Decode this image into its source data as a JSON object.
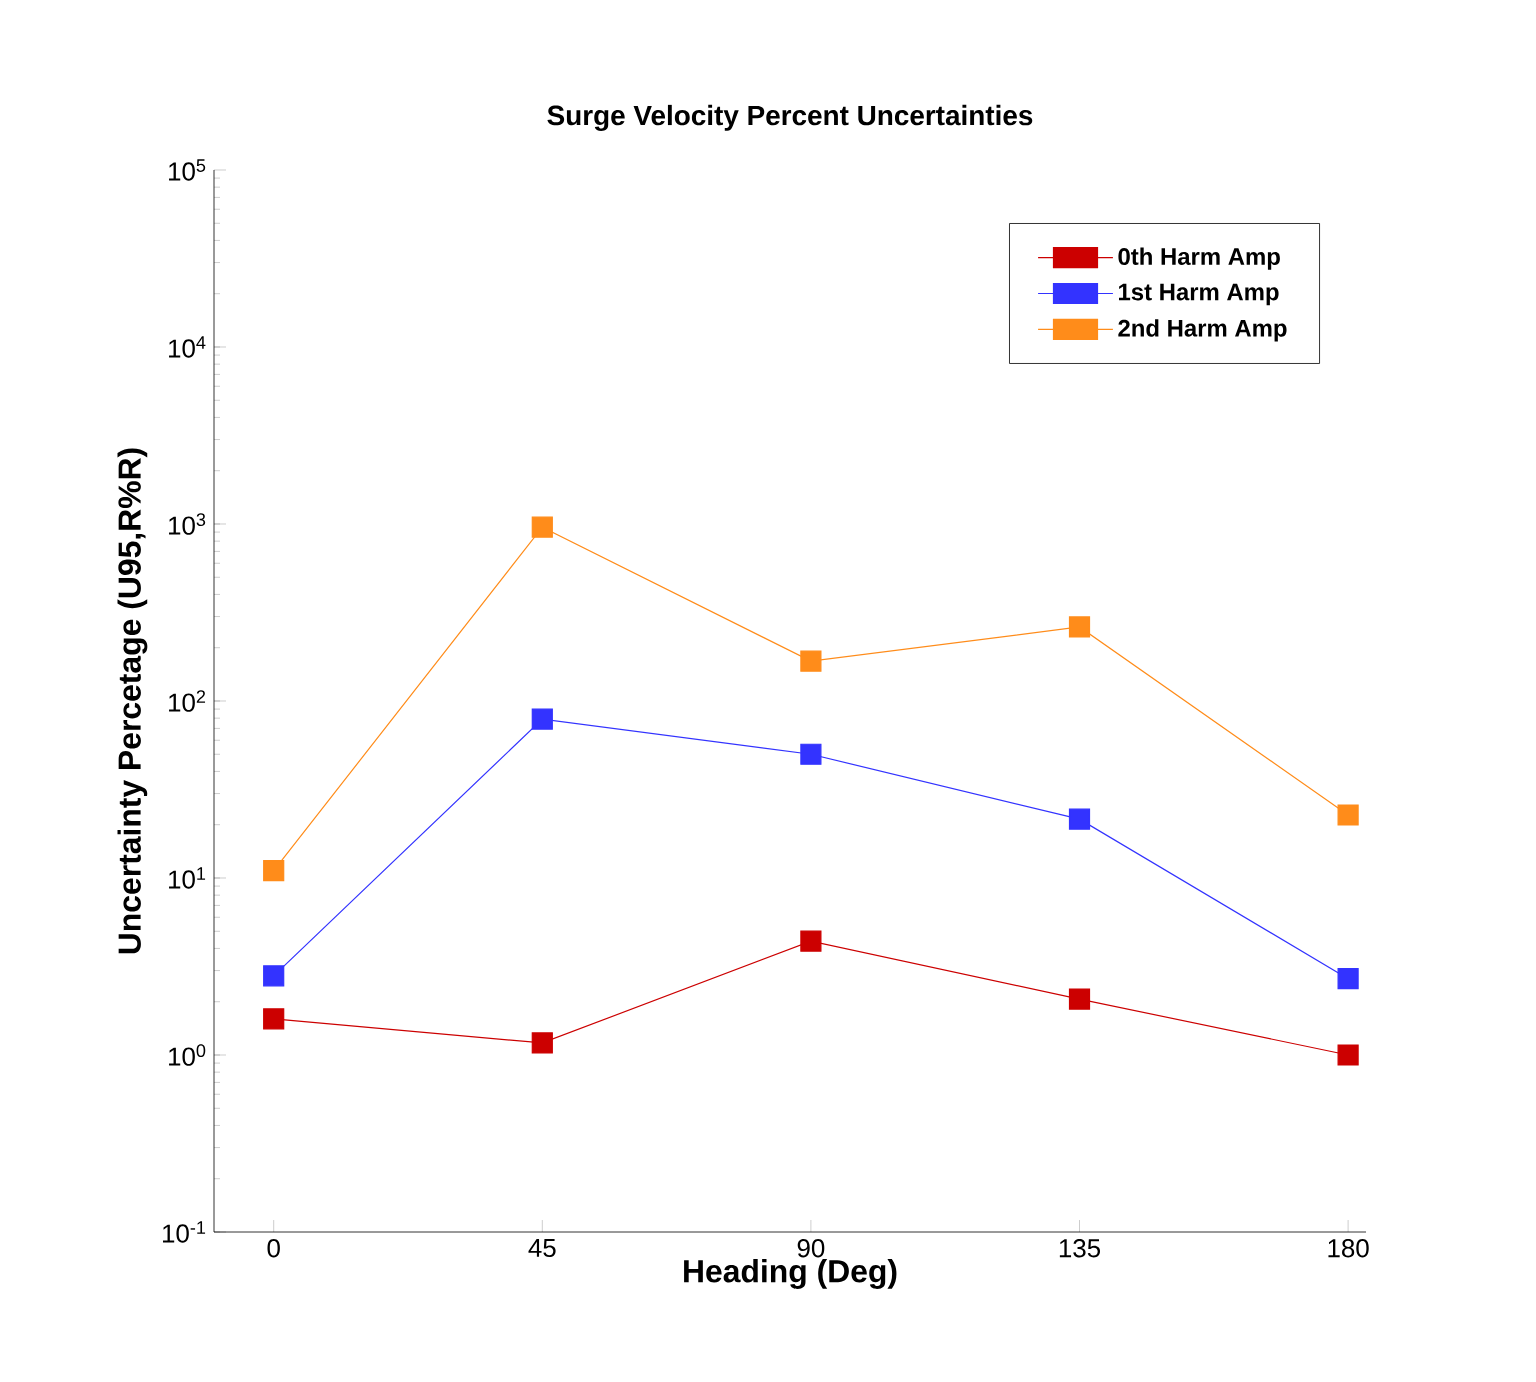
{
  "chart_data": {
    "type": "line",
    "title": "Surge Velocity Percent Uncertainties",
    "xlabel": "Heading (Deg)",
    "ylabel": "Uncertainty Percetage (U95,R%R)",
    "x": [
      0,
      45,
      90,
      135,
      180
    ],
    "series": [
      {
        "name": "0th Harm Amp",
        "color": "#cc0000",
        "values": [
          1.6,
          1.17,
          4.4,
          2.07,
          1.0
        ]
      },
      {
        "name": "1st Harm Amp",
        "color": "#3333ff",
        "values": [
          2.8,
          79,
          50,
          21.5,
          2.7
        ]
      },
      {
        "name": "2nd Harm Amp",
        "color": "#ff8c1a",
        "values": [
          11,
          960,
          168,
          262,
          22.7
        ]
      }
    ],
    "log": "y",
    "xlim": [
      -10,
      183
    ],
    "ylim": [
      0.1,
      100000
    ],
    "xticks": [
      0,
      45,
      90,
      135,
      180
    ],
    "yticks": [
      {
        "value": 0.1,
        "label": "10$^{-1}$"
      },
      {
        "value": 1,
        "label": "10$^{0}$"
      },
      {
        "value": 10,
        "label": "10$^{1}$"
      },
      {
        "value": 100,
        "label": "10$^{2}$"
      },
      {
        "value": 1000,
        "label": "10$^{3}$"
      },
      {
        "value": 10000,
        "label": "10$^{4}$"
      },
      {
        "value": 100000,
        "label": "10$^{5}$"
      }
    ],
    "legend": "top right",
    "marker": "square",
    "line_style": "solid",
    "grid": false
  }
}
